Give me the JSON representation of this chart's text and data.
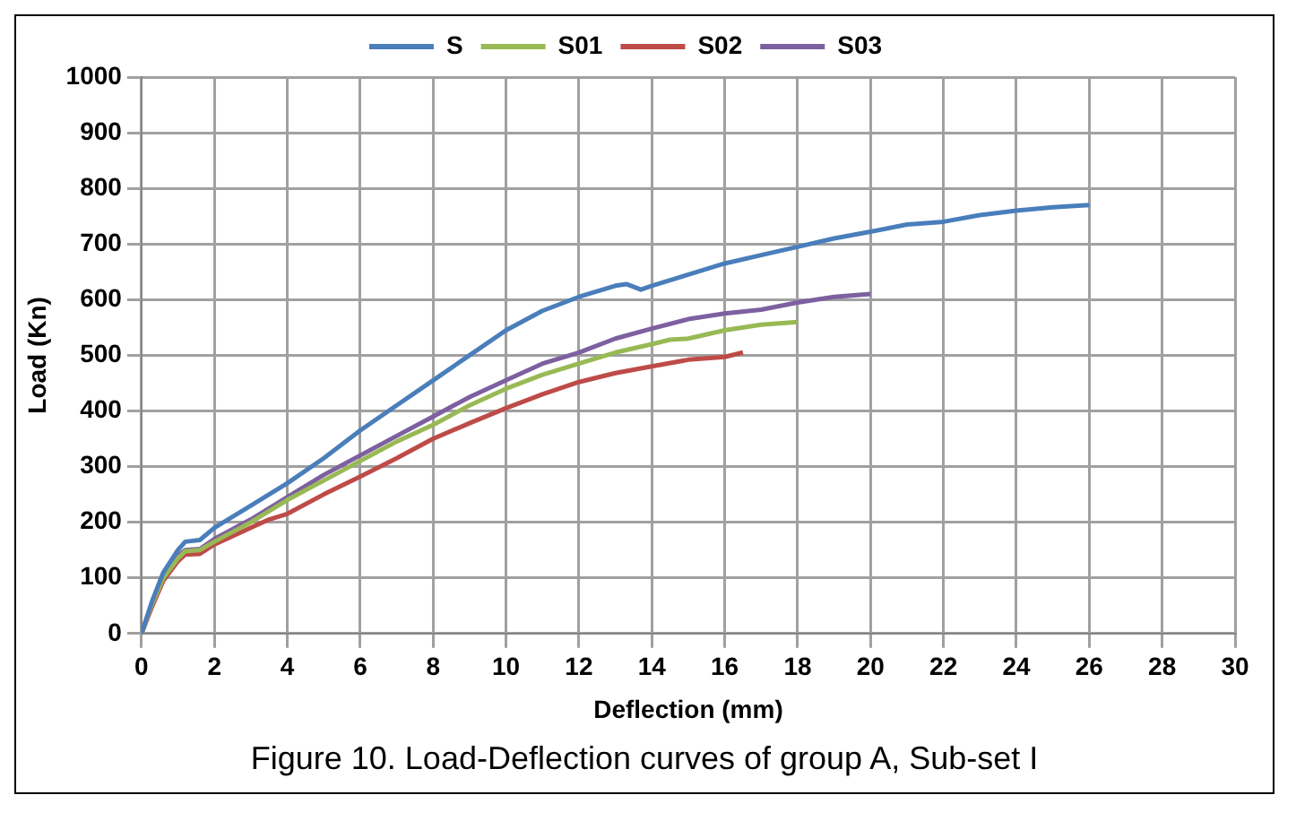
{
  "chart_data": {
    "type": "line",
    "xlabel": "Deflection (mm)",
    "ylabel": "Load (Kn)",
    "annotations": [
      "Figure 10. Load-Deflection curves of group A, Sub-set I"
    ],
    "xlim": [
      0,
      30
    ],
    "xticks": [
      0,
      2,
      4,
      6,
      8,
      10,
      12,
      14,
      16,
      18,
      20,
      22,
      24,
      26,
      28,
      30
    ],
    "ylim": [
      0,
      1000
    ],
    "yticks": [
      0,
      100,
      200,
      300,
      400,
      500,
      600,
      700,
      800,
      900,
      1000
    ],
    "grid": true,
    "legend": "top",
    "marker": "none",
    "line_style": "solid",
    "series": [
      {
        "name": "S",
        "color": "#4a7ebb",
        "x": [
          0,
          0.3,
          0.6,
          1,
          1.2,
          1.6,
          2,
          3,
          4,
          5,
          6,
          7,
          8,
          9,
          10,
          11,
          12,
          13,
          13.3,
          13.7,
          14,
          15,
          16,
          17,
          18,
          19,
          20,
          21,
          22,
          23,
          24,
          25,
          26
        ],
        "values": [
          0,
          60,
          110,
          150,
          165,
          168,
          190,
          230,
          270,
          315,
          365,
          410,
          455,
          500,
          545,
          580,
          605,
          625,
          628,
          618,
          625,
          645,
          665,
          680,
          695,
          710,
          722,
          735,
          740,
          752,
          760,
          766,
          770
        ]
      },
      {
        "name": "S01",
        "color": "#98b954",
        "x": [
          0,
          0.3,
          0.6,
          1,
          1.2,
          1.6,
          2,
          3,
          4,
          5,
          6,
          7,
          8,
          9,
          10,
          11,
          12,
          13,
          14,
          14.5,
          15,
          16,
          17,
          18
        ],
        "values": [
          0,
          55,
          100,
          135,
          148,
          150,
          165,
          200,
          240,
          275,
          310,
          345,
          375,
          410,
          440,
          465,
          485,
          505,
          520,
          528,
          530,
          545,
          555,
          560
        ]
      },
      {
        "name": "S02",
        "color": "#be4b48",
        "x": [
          0,
          0.3,
          0.6,
          1,
          1.2,
          1.6,
          2,
          3,
          3.5,
          4,
          5,
          6,
          7,
          8,
          9,
          10,
          11,
          12,
          13,
          14,
          15,
          16,
          16.5
        ],
        "values": [
          0,
          50,
          95,
          130,
          142,
          143,
          160,
          190,
          205,
          215,
          250,
          282,
          315,
          350,
          378,
          405,
          430,
          452,
          468,
          480,
          492,
          497,
          505
        ]
      },
      {
        "name": "S03",
        "color": "#7d60a0",
        "x": [
          0,
          0.3,
          0.6,
          1,
          1.2,
          1.6,
          2,
          3,
          4,
          5,
          6,
          7,
          8,
          9,
          10,
          11,
          12,
          13,
          14,
          15,
          16,
          17,
          18,
          19,
          20
        ],
        "values": [
          0,
          55,
          105,
          140,
          150,
          152,
          170,
          205,
          245,
          285,
          320,
          355,
          390,
          425,
          455,
          485,
          505,
          530,
          548,
          565,
          575,
          582,
          595,
          605,
          610
        ]
      }
    ]
  }
}
